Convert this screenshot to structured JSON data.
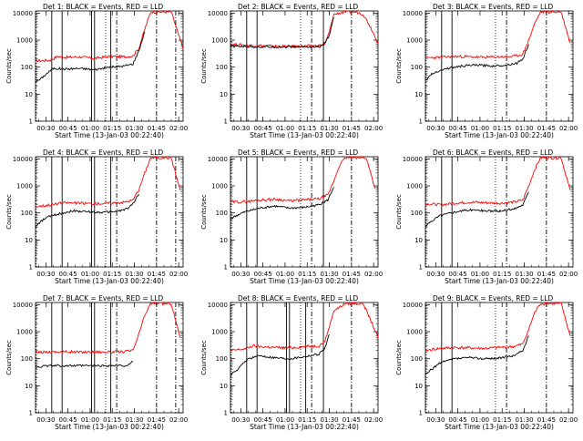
{
  "chart_data": {
    "type": "line",
    "x_range": [
      "00:23",
      "02:03"
    ],
    "x_ticks": [
      "00:30",
      "00:45",
      "01:00",
      "01:15",
      "01:30",
      "01:45",
      "02:00"
    ],
    "ylabel": "Counts/sec",
    "xlabel": "Start Time (13-Jan-03 00:22:40)",
    "y_scale": "log",
    "ylim": [
      1,
      12000
    ],
    "y_ticks": [
      "1",
      "10",
      "100",
      "1000",
      "10000"
    ],
    "grid": false,
    "series_colors": {
      "events": "#000000",
      "lld": "#ff0000"
    },
    "panels": [
      {
        "title": "Det 1: BLACK = Events, RED = LLD",
        "lld": [
          [
            0,
            170
          ],
          [
            10,
            180
          ],
          [
            15,
            250
          ],
          [
            20,
            230
          ],
          [
            30,
            240
          ],
          [
            40,
            210
          ],
          [
            50,
            250
          ],
          [
            60,
            240
          ],
          [
            66,
            260
          ],
          [
            70,
            500
          ],
          [
            74,
            2500
          ],
          [
            78,
            11000
          ],
          [
            85,
            11000
          ],
          [
            92,
            11000
          ],
          [
            97,
            1500
          ],
          [
            100,
            500
          ]
        ],
        "events": [
          [
            0,
            30
          ],
          [
            3,
            35
          ],
          [
            8,
            60
          ],
          [
            12,
            90
          ],
          [
            20,
            85
          ],
          [
            30,
            90
          ],
          [
            40,
            80
          ],
          [
            50,
            100
          ],
          [
            60,
            110
          ],
          [
            66,
            130
          ],
          [
            70,
            400
          ],
          [
            74,
            2000
          ]
        ],
        "solid_lines": [
          11,
          18,
          38,
          40,
          51
        ],
        "dashdot_lines": [
          55,
          82,
          95
        ],
        "dotted_lines": [
          0,
          47
        ]
      },
      {
        "title": "Det 2: BLACK = Events, RED = LLD",
        "lld": [
          [
            0,
            700
          ],
          [
            10,
            650
          ],
          [
            20,
            620
          ],
          [
            30,
            600
          ],
          [
            40,
            580
          ],
          [
            50,
            600
          ],
          [
            60,
            620
          ],
          [
            64,
            700
          ],
          [
            67,
            2000
          ],
          [
            70,
            9000
          ],
          [
            78,
            11000
          ],
          [
            85,
            11000
          ],
          [
            90,
            9000
          ],
          [
            95,
            3000
          ],
          [
            100,
            800
          ]
        ],
        "events": [
          [
            0,
            600
          ],
          [
            10,
            580
          ],
          [
            20,
            560
          ],
          [
            30,
            560
          ],
          [
            40,
            560
          ],
          [
            50,
            570
          ],
          [
            60,
            560
          ],
          [
            63,
            650
          ],
          [
            67,
            1500
          ],
          [
            70,
            7000
          ]
        ],
        "solid_lines": [
          11,
          18,
          63
        ],
        "dashdot_lines": [
          55,
          82
        ],
        "dotted_lines": [
          0,
          47
        ]
      },
      {
        "title": "Det 3: BLACK = Events, RED = LLD",
        "lld": [
          [
            0,
            220
          ],
          [
            10,
            230
          ],
          [
            20,
            250
          ],
          [
            30,
            240
          ],
          [
            40,
            230
          ],
          [
            50,
            240
          ],
          [
            60,
            250
          ],
          [
            66,
            300
          ],
          [
            70,
            1000
          ],
          [
            74,
            4000
          ],
          [
            78,
            11000
          ],
          [
            92,
            11000
          ],
          [
            98,
            800
          ]
        ],
        "events": [
          [
            0,
            30
          ],
          [
            3,
            50
          ],
          [
            8,
            70
          ],
          [
            15,
            90
          ],
          [
            25,
            110
          ],
          [
            35,
            120
          ],
          [
            45,
            110
          ],
          [
            55,
            120
          ],
          [
            62,
            140
          ],
          [
            66,
            200
          ],
          [
            70,
            700
          ]
        ],
        "solid_lines": [
          11,
          18
        ],
        "dashdot_lines": [
          55,
          82
        ],
        "dotted_lines": [
          0,
          47
        ]
      },
      {
        "title": "Det 4: BLACK = Events, RED = LLD",
        "lld": [
          [
            0,
            170
          ],
          [
            10,
            200
          ],
          [
            20,
            240
          ],
          [
            30,
            230
          ],
          [
            40,
            220
          ],
          [
            50,
            230
          ],
          [
            60,
            250
          ],
          [
            66,
            300
          ],
          [
            70,
            700
          ],
          [
            74,
            3000
          ],
          [
            78,
            11000
          ],
          [
            92,
            11000
          ],
          [
            98,
            700
          ]
        ],
        "events": [
          [
            0,
            30
          ],
          [
            4,
            50
          ],
          [
            8,
            70
          ],
          [
            15,
            90
          ],
          [
            25,
            120
          ],
          [
            35,
            110
          ],
          [
            45,
            105
          ],
          [
            55,
            115
          ],
          [
            62,
            140
          ],
          [
            66,
            220
          ],
          [
            70,
            500
          ]
        ],
        "solid_lines": [
          11,
          18,
          38,
          40,
          51
        ],
        "dashdot_lines": [
          55,
          82,
          95
        ],
        "dotted_lines": [
          0,
          47
        ]
      },
      {
        "title": "Det 5: BLACK = Events, RED = LLD",
        "lld": [
          [
            0,
            250
          ],
          [
            10,
            260
          ],
          [
            20,
            300
          ],
          [
            30,
            320
          ],
          [
            40,
            280
          ],
          [
            50,
            300
          ],
          [
            60,
            330
          ],
          [
            66,
            450
          ],
          [
            70,
            1500
          ],
          [
            74,
            6000
          ],
          [
            78,
            11000
          ],
          [
            92,
            11000
          ],
          [
            98,
            800
          ]
        ],
        "events": [
          [
            0,
            60
          ],
          [
            4,
            80
          ],
          [
            10,
            110
          ],
          [
            20,
            150
          ],
          [
            30,
            180
          ],
          [
            40,
            150
          ],
          [
            50,
            160
          ],
          [
            60,
            200
          ],
          [
            66,
            300
          ],
          [
            70,
            900
          ]
        ],
        "solid_lines": [
          11,
          18,
          63
        ],
        "dashdot_lines": [
          55,
          82
        ],
        "dotted_lines": [
          0,
          47
        ]
      },
      {
        "title": "Det 6: BLACK = Events, RED = LLD",
        "lld": [
          [
            0,
            220
          ],
          [
            10,
            200
          ],
          [
            20,
            230
          ],
          [
            30,
            250
          ],
          [
            40,
            240
          ],
          [
            50,
            230
          ],
          [
            60,
            250
          ],
          [
            66,
            300
          ],
          [
            70,
            1000
          ],
          [
            74,
            4000
          ],
          [
            78,
            11000
          ],
          [
            92,
            11000
          ],
          [
            98,
            700
          ]
        ],
        "events": [
          [
            0,
            30
          ],
          [
            4,
            50
          ],
          [
            10,
            80
          ],
          [
            20,
            110
          ],
          [
            30,
            130
          ],
          [
            40,
            120
          ],
          [
            50,
            115
          ],
          [
            60,
            140
          ],
          [
            66,
            200
          ],
          [
            70,
            600
          ]
        ],
        "solid_lines": [
          11,
          18
        ],
        "dashdot_lines": [
          55,
          82
        ],
        "dotted_lines": [
          0,
          47
        ]
      },
      {
        "title": "Det 7: BLACK = Events, RED = LLD",
        "lld": [
          [
            0,
            170
          ],
          [
            10,
            180
          ],
          [
            20,
            180
          ],
          [
            30,
            175
          ],
          [
            40,
            180
          ],
          [
            50,
            175
          ],
          [
            60,
            180
          ],
          [
            66,
            200
          ],
          [
            70,
            800
          ],
          [
            74,
            4000
          ],
          [
            78,
            11000
          ],
          [
            92,
            11000
          ],
          [
            98,
            600
          ]
        ],
        "events": [
          [
            0,
            50
          ],
          [
            10,
            55
          ],
          [
            20,
            55
          ],
          [
            30,
            55
          ],
          [
            40,
            55
          ],
          [
            50,
            55
          ],
          [
            60,
            55
          ],
          [
            64,
            60
          ],
          [
            66,
            80
          ]
        ],
        "solid_lines": [
          11,
          18,
          38,
          40,
          51
        ],
        "dashdot_lines": [
          55,
          82,
          95
        ],
        "dotted_lines": [
          0,
          47
        ]
      },
      {
        "title": "Det 8: BLACK = Events, RED = LLD",
        "lld": [
          [
            0,
            200
          ],
          [
            10,
            230
          ],
          [
            15,
            300
          ],
          [
            20,
            280
          ],
          [
            30,
            260
          ],
          [
            40,
            250
          ],
          [
            50,
            280
          ],
          [
            60,
            300
          ],
          [
            64,
            450
          ],
          [
            67,
            1500
          ],
          [
            70,
            6000
          ],
          [
            78,
            11000
          ],
          [
            90,
            11000
          ],
          [
            96,
            2000
          ],
          [
            100,
            600
          ]
        ],
        "events": [
          [
            0,
            25
          ],
          [
            4,
            35
          ],
          [
            8,
            60
          ],
          [
            12,
            100
          ],
          [
            20,
            130
          ],
          [
            30,
            110
          ],
          [
            40,
            100
          ],
          [
            50,
            120
          ],
          [
            60,
            150
          ],
          [
            64,
            250
          ],
          [
            67,
            800
          ]
        ],
        "solid_lines": [
          11,
          18,
          38,
          40,
          51,
          63
        ],
        "dashdot_lines": [
          55,
          82
        ],
        "dotted_lines": [
          0,
          47
        ]
      },
      {
        "title": "Det 9: BLACK = Events, RED = LLD",
        "lld": [
          [
            0,
            200
          ],
          [
            10,
            240
          ],
          [
            20,
            260
          ],
          [
            30,
            250
          ],
          [
            40,
            240
          ],
          [
            50,
            260
          ],
          [
            60,
            280
          ],
          [
            66,
            350
          ],
          [
            70,
            1200
          ],
          [
            74,
            5000
          ],
          [
            78,
            11000
          ],
          [
            92,
            11000
          ],
          [
            98,
            700
          ]
        ],
        "events": [
          [
            0,
            25
          ],
          [
            4,
            40
          ],
          [
            10,
            70
          ],
          [
            20,
            100
          ],
          [
            30,
            110
          ],
          [
            40,
            100
          ],
          [
            50,
            105
          ],
          [
            60,
            130
          ],
          [
            66,
            200
          ],
          [
            70,
            700
          ]
        ],
        "solid_lines": [
          11,
          18
        ],
        "dashdot_lines": [
          55,
          82
        ],
        "dotted_lines": [
          0,
          47
        ]
      }
    ]
  }
}
